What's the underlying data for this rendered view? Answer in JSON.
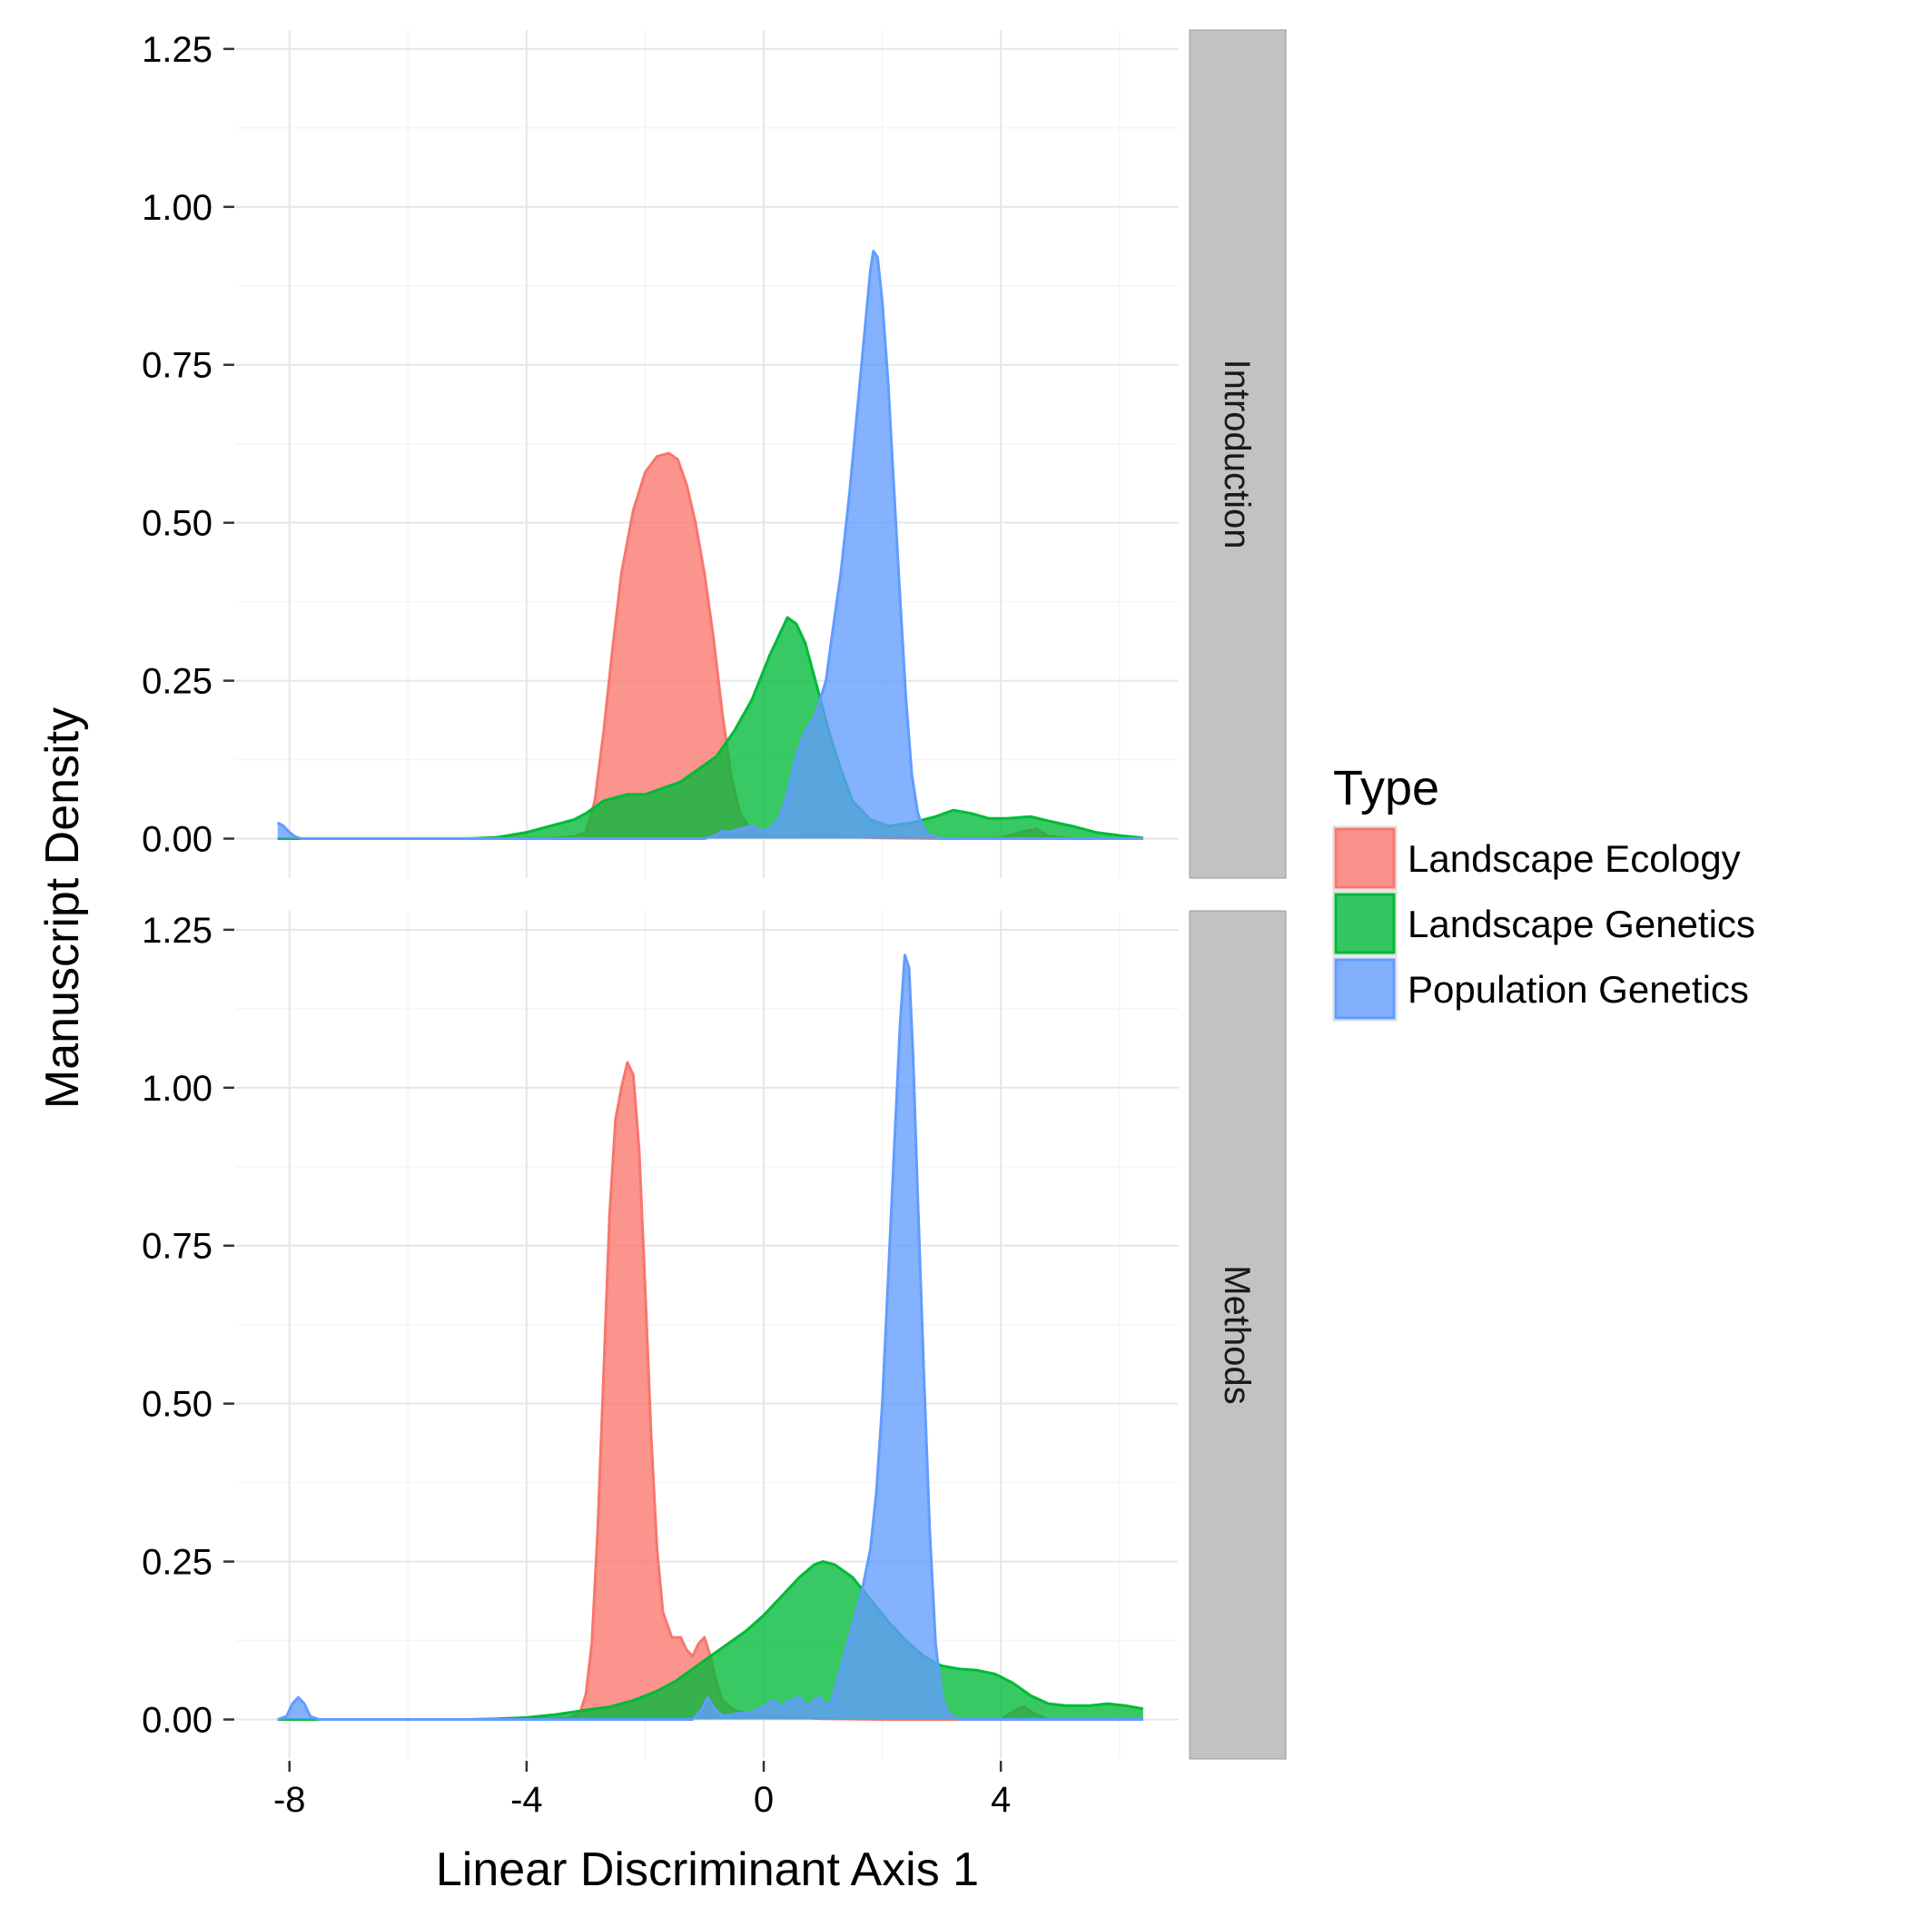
{
  "chart_data": {
    "type": "area",
    "xlabel": "Linear Discriminant Axis 1",
    "ylabel": "Manuscript Density",
    "xlim": [
      -8.9,
      7.0
    ],
    "ylim": [
      -0.0625,
      1.28
    ],
    "x_ticks": [
      -8,
      -4,
      0,
      4
    ],
    "x_tick_labels": [
      "-8",
      "-4",
      "0",
      "4"
    ],
    "y_ticks": [
      0,
      0.25,
      0.5,
      0.75,
      1.0,
      1.25
    ],
    "y_tick_labels": [
      "0.00",
      "0.25",
      "0.50",
      "0.75",
      "1.00",
      "1.25"
    ],
    "grid": true,
    "legend": {
      "title": "Type",
      "position": "right",
      "entries": [
        "Landscape Ecology",
        "Landscape Genetics",
        "Population Genetics"
      ]
    },
    "series_colors": {
      "Landscape Ecology": "#F8766D",
      "Landscape Genetics": "#00BA38",
      "Population Genetics": "#619CFF"
    },
    "facets": [
      {
        "label": "Introduction",
        "series": [
          {
            "name": "Landscape Ecology",
            "points": [
              [
                -8.2,
                0
              ],
              [
                -4.5,
                0
              ],
              [
                -3.5,
                0.001
              ],
              [
                -3.2,
                0.003
              ],
              [
                -3.0,
                0.01
              ],
              [
                -2.85,
                0.06
              ],
              [
                -2.7,
                0.17
              ],
              [
                -2.55,
                0.3
              ],
              [
                -2.4,
                0.42
              ],
              [
                -2.2,
                0.52
              ],
              [
                -2.0,
                0.58
              ],
              [
                -1.8,
                0.605
              ],
              [
                -1.6,
                0.61
              ],
              [
                -1.45,
                0.6
              ],
              [
                -1.3,
                0.56
              ],
              [
                -1.15,
                0.5
              ],
              [
                -1.0,
                0.42
              ],
              [
                -0.85,
                0.32
              ],
              [
                -0.7,
                0.2
              ],
              [
                -0.55,
                0.1
              ],
              [
                -0.4,
                0.04
              ],
              [
                -0.2,
                0.012
              ],
              [
                0.0,
                0.005
              ],
              [
                0.5,
                0.002
              ],
              [
                1.0,
                0.01
              ],
              [
                1.3,
                0.003
              ],
              [
                2.0,
                0.001
              ],
              [
                3.0,
                0
              ],
              [
                4.0,
                0.001
              ],
              [
                4.4,
                0.012
              ],
              [
                4.6,
                0.015
              ],
              [
                4.8,
                0.004
              ],
              [
                5.2,
                0
              ],
              [
                6.4,
                0
              ]
            ]
          },
          {
            "name": "Landscape Genetics",
            "points": [
              [
                -8.2,
                0
              ],
              [
                -5.0,
                0
              ],
              [
                -4.5,
                0.002
              ],
              [
                -4.0,
                0.01
              ],
              [
                -3.6,
                0.02
              ],
              [
                -3.2,
                0.03
              ],
              [
                -3.0,
                0.04
              ],
              [
                -2.7,
                0.06
              ],
              [
                -2.3,
                0.07
              ],
              [
                -2.0,
                0.07
              ],
              [
                -1.7,
                0.08
              ],
              [
                -1.4,
                0.09
              ],
              [
                -1.1,
                0.11
              ],
              [
                -0.8,
                0.13
              ],
              [
                -0.5,
                0.17
              ],
              [
                -0.2,
                0.22
              ],
              [
                0.1,
                0.29
              ],
              [
                0.3,
                0.33
              ],
              [
                0.4,
                0.35
              ],
              [
                0.55,
                0.34
              ],
              [
                0.7,
                0.31
              ],
              [
                0.9,
                0.24
              ],
              [
                1.1,
                0.17
              ],
              [
                1.3,
                0.11
              ],
              [
                1.5,
                0.06
              ],
              [
                1.8,
                0.03
              ],
              [
                2.1,
                0.02
              ],
              [
                2.5,
                0.025
              ],
              [
                2.9,
                0.035
              ],
              [
                3.2,
                0.045
              ],
              [
                3.5,
                0.04
              ],
              [
                3.8,
                0.032
              ],
              [
                4.1,
                0.032
              ],
              [
                4.5,
                0.035
              ],
              [
                4.8,
                0.028
              ],
              [
                5.2,
                0.02
              ],
              [
                5.6,
                0.01
              ],
              [
                6.0,
                0.005
              ],
              [
                6.4,
                0.001
              ]
            ]
          },
          {
            "name": "Population Genetics",
            "points": [
              [
                -8.2,
                0.025
              ],
              [
                -8.1,
                0.02
              ],
              [
                -8.0,
                0.01
              ],
              [
                -7.9,
                0.003
              ],
              [
                -7.8,
                0
              ],
              [
                -1.0,
                0
              ],
              [
                -0.8,
                0.005
              ],
              [
                -0.7,
                0.012
              ],
              [
                -0.6,
                0.01
              ],
              [
                -0.4,
                0.015
              ],
              [
                -0.2,
                0.02
              ],
              [
                -0.05,
                0.012
              ],
              [
                0.1,
                0.015
              ],
              [
                0.25,
                0.03
              ],
              [
                0.4,
                0.07
              ],
              [
                0.55,
                0.13
              ],
              [
                0.7,
                0.17
              ],
              [
                0.85,
                0.19
              ],
              [
                0.95,
                0.22
              ],
              [
                1.05,
                0.25
              ],
              [
                1.15,
                0.32
              ],
              [
                1.3,
                0.42
              ],
              [
                1.45,
                0.55
              ],
              [
                1.6,
                0.7
              ],
              [
                1.7,
                0.8
              ],
              [
                1.8,
                0.9
              ],
              [
                1.85,
                0.93
              ],
              [
                1.92,
                0.92
              ],
              [
                2.0,
                0.85
              ],
              [
                2.1,
                0.72
              ],
              [
                2.2,
                0.55
              ],
              [
                2.3,
                0.38
              ],
              [
                2.4,
                0.22
              ],
              [
                2.5,
                0.1
              ],
              [
                2.6,
                0.04
              ],
              [
                2.7,
                0.015
              ],
              [
                2.8,
                0.005
              ],
              [
                3.0,
                0
              ],
              [
                6.4,
                0
              ]
            ]
          }
        ]
      },
      {
        "label": "Methods",
        "series": [
          {
            "name": "Landscape Ecology",
            "points": [
              [
                -8.2,
                0
              ],
              [
                -4.0,
                0
              ],
              [
                -3.3,
                0.002
              ],
              [
                -3.1,
                0.01
              ],
              [
                -3.0,
                0.04
              ],
              [
                -2.9,
                0.12
              ],
              [
                -2.8,
                0.3
              ],
              [
                -2.7,
                0.55
              ],
              [
                -2.6,
                0.8
              ],
              [
                -2.5,
                0.95
              ],
              [
                -2.4,
                1.0
              ],
              [
                -2.3,
                1.04
              ],
              [
                -2.2,
                1.02
              ],
              [
                -2.1,
                0.9
              ],
              [
                -2.0,
                0.68
              ],
              [
                -1.9,
                0.45
              ],
              [
                -1.8,
                0.27
              ],
              [
                -1.7,
                0.17
              ],
              [
                -1.55,
                0.13
              ],
              [
                -1.4,
                0.13
              ],
              [
                -1.3,
                0.11
              ],
              [
                -1.2,
                0.1
              ],
              [
                -1.1,
                0.12
              ],
              [
                -1.0,
                0.13
              ],
              [
                -0.9,
                0.1
              ],
              [
                -0.8,
                0.06
              ],
              [
                -0.7,
                0.03
              ],
              [
                -0.5,
                0.015
              ],
              [
                -0.3,
                0.01
              ],
              [
                0.0,
                0.006
              ],
              [
                0.5,
                0.003
              ],
              [
                1.0,
                0.001
              ],
              [
                2.0,
                0
              ],
              [
                4.0,
                0
              ],
              [
                4.25,
                0.015
              ],
              [
                4.4,
                0.02
              ],
              [
                4.55,
                0.01
              ],
              [
                4.8,
                0
              ],
              [
                6.4,
                0
              ]
            ]
          },
          {
            "name": "Landscape Genetics",
            "points": [
              [
                -8.2,
                0
              ],
              [
                -5.0,
                0
              ],
              [
                -4.5,
                0.001
              ],
              [
                -4.0,
                0.003
              ],
              [
                -3.5,
                0.008
              ],
              [
                -3.0,
                0.015
              ],
              [
                -2.6,
                0.02
              ],
              [
                -2.2,
                0.03
              ],
              [
                -1.8,
                0.045
              ],
              [
                -1.5,
                0.06
              ],
              [
                -1.2,
                0.08
              ],
              [
                -0.9,
                0.1
              ],
              [
                -0.6,
                0.12
              ],
              [
                -0.3,
                0.14
              ],
              [
                0.0,
                0.165
              ],
              [
                0.3,
                0.195
              ],
              [
                0.6,
                0.225
              ],
              [
                0.85,
                0.245
              ],
              [
                1.0,
                0.25
              ],
              [
                1.2,
                0.245
              ],
              [
                1.5,
                0.225
              ],
              [
                1.8,
                0.19
              ],
              [
                2.1,
                0.155
              ],
              [
                2.4,
                0.125
              ],
              [
                2.7,
                0.1
              ],
              [
                3.0,
                0.085
              ],
              [
                3.3,
                0.08
              ],
              [
                3.6,
                0.078
              ],
              [
                3.9,
                0.072
              ],
              [
                4.2,
                0.058
              ],
              [
                4.5,
                0.038
              ],
              [
                4.8,
                0.025
              ],
              [
                5.1,
                0.022
              ],
              [
                5.5,
                0.022
              ],
              [
                5.8,
                0.025
              ],
              [
                6.1,
                0.022
              ],
              [
                6.4,
                0.017
              ]
            ]
          },
          {
            "name": "Population Genetics",
            "points": [
              [
                -8.2,
                0
              ],
              [
                -8.05,
                0.005
              ],
              [
                -7.95,
                0.025
              ],
              [
                -7.85,
                0.035
              ],
              [
                -7.75,
                0.025
              ],
              [
                -7.65,
                0.005
              ],
              [
                -7.5,
                0
              ],
              [
                -1.2,
                0
              ],
              [
                -1.05,
                0.015
              ],
              [
                -0.95,
                0.035
              ],
              [
                -0.85,
                0.02
              ],
              [
                -0.7,
                0.005
              ],
              [
                -0.4,
                0.01
              ],
              [
                -0.2,
                0.012
              ],
              [
                0.0,
                0.02
              ],
              [
                0.15,
                0.03
              ],
              [
                0.3,
                0.02
              ],
              [
                0.45,
                0.03
              ],
              [
                0.6,
                0.035
              ],
              [
                0.75,
                0.02
              ],
              [
                0.85,
                0.03
              ],
              [
                0.95,
                0.035
              ],
              [
                1.05,
                0.02
              ],
              [
                1.15,
                0.03
              ],
              [
                1.3,
                0.08
              ],
              [
                1.5,
                0.15
              ],
              [
                1.65,
                0.2
              ],
              [
                1.8,
                0.27
              ],
              [
                1.9,
                0.36
              ],
              [
                2.0,
                0.5
              ],
              [
                2.1,
                0.7
              ],
              [
                2.2,
                0.9
              ],
              [
                2.3,
                1.1
              ],
              [
                2.38,
                1.21
              ],
              [
                2.45,
                1.19
              ],
              [
                2.52,
                1.05
              ],
              [
                2.6,
                0.82
              ],
              [
                2.7,
                0.55
              ],
              [
                2.8,
                0.3
              ],
              [
                2.9,
                0.12
              ],
              [
                3.0,
                0.04
              ],
              [
                3.1,
                0.01
              ],
              [
                3.3,
                0
              ],
              [
                6.4,
                0
              ]
            ]
          }
        ]
      }
    ]
  }
}
